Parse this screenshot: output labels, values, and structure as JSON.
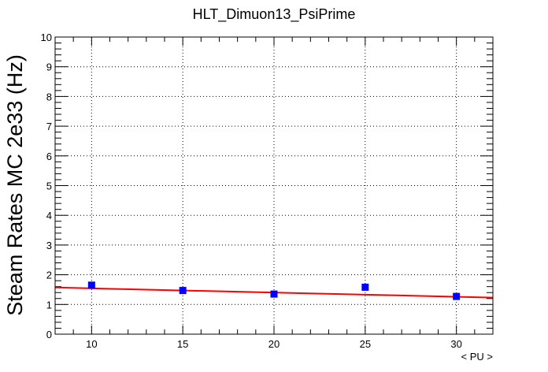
{
  "chart_data": {
    "type": "scatter",
    "title": "HLT_Dimuon13_PsiPrime",
    "xlabel": "< PU >",
    "ylabel": "Steam Rates MC 2e33 (Hz)",
    "xlim": [
      8,
      32
    ],
    "ylim": [
      0,
      10
    ],
    "x_ticks": [
      10,
      15,
      20,
      25,
      30
    ],
    "y_ticks": [
      0,
      1,
      2,
      3,
      4,
      5,
      6,
      7,
      8,
      9,
      10
    ],
    "grid": true,
    "series": [
      {
        "points": [
          {
            "x": 10,
            "y": 1.65
          },
          {
            "x": 15,
            "y": 1.47
          },
          {
            "x": 20,
            "y": 1.35
          },
          {
            "x": 25,
            "y": 1.58
          },
          {
            "x": 30,
            "y": 1.27
          }
        ],
        "color": "#0000ff",
        "marker": "square"
      }
    ],
    "fit": {
      "type": "linear",
      "x_range": [
        8,
        32
      ],
      "y_start": 1.57,
      "y_end": 1.23,
      "color": "#ff0000"
    }
  }
}
